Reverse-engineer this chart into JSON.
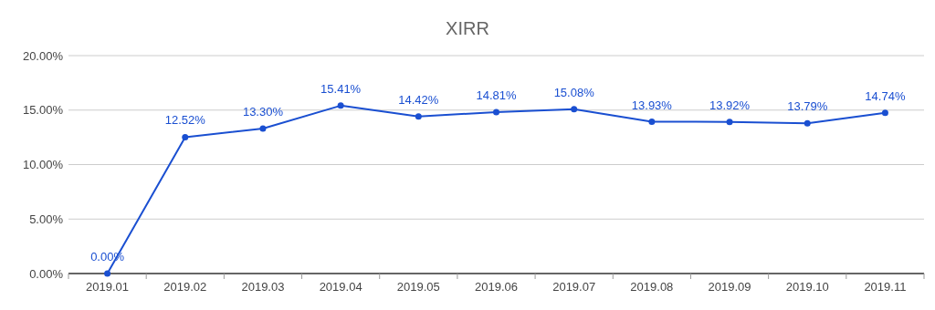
{
  "chart_data": {
    "type": "line",
    "title": "XIRR",
    "categories": [
      "2019.01",
      "2019.02",
      "2019.03",
      "2019.04",
      "2019.05",
      "2019.06",
      "2019.07",
      "2019.08",
      "2019.09",
      "2019.10",
      "2019.11"
    ],
    "series": [
      {
        "color": "#1a4fd1",
        "values": [
          0,
          12.52,
          13.3,
          15.41,
          14.42,
          14.81,
          15.08,
          13.93,
          13.92,
          13.79,
          14.74
        ],
        "value_labels": [
          "0.00%",
          "12.52%",
          "13.30%",
          "15.41%",
          "14.42%",
          "14.81%",
          "15.08%",
          "13.93%",
          "13.92%",
          "13.79%",
          "14.74%"
        ]
      }
    ],
    "ylim": [
      0,
      20
    ],
    "yticks": [
      {
        "value": 0,
        "label": "0.00%"
      },
      {
        "value": 5,
        "label": "5.00%"
      },
      {
        "value": 10,
        "label": "10.00%"
      },
      {
        "value": 15,
        "label": "15.00%"
      },
      {
        "value": 20,
        "label": "20.00%"
      }
    ],
    "grid": "y",
    "marker": "circle",
    "line_style": "solid"
  }
}
